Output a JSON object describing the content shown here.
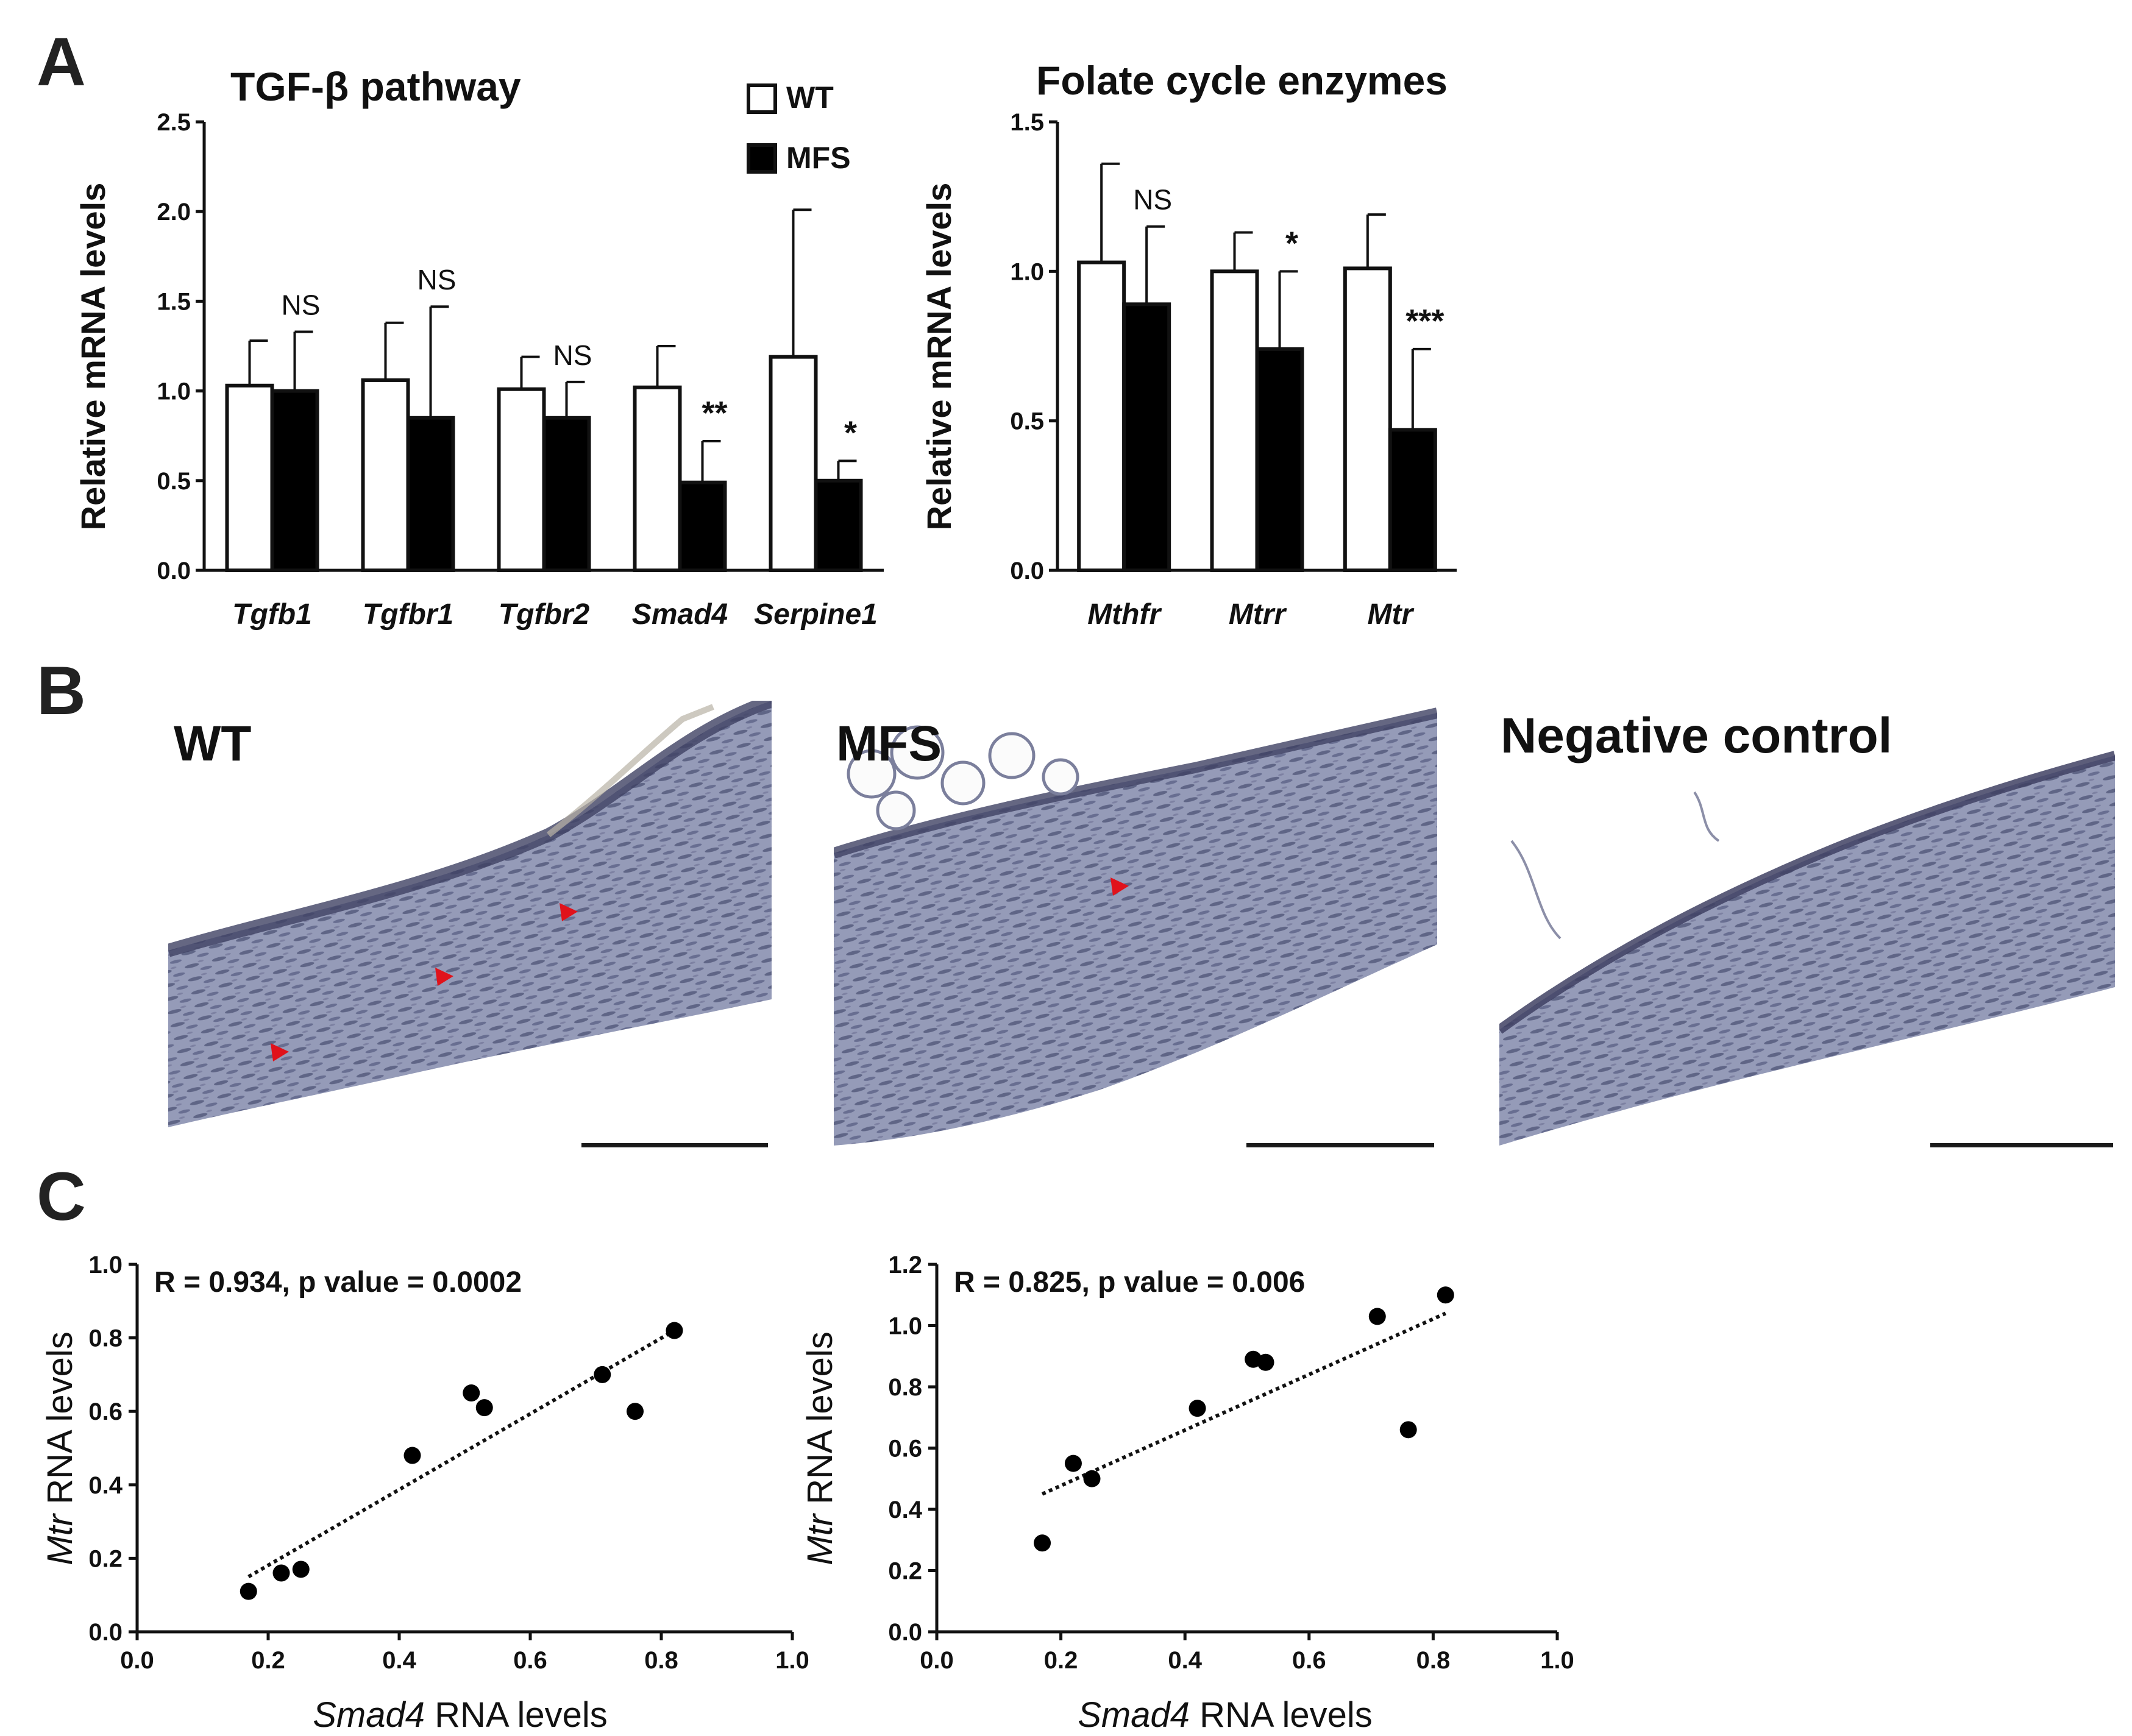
{
  "panel_labels": {
    "a": "A",
    "b": "B",
    "c": "C"
  },
  "legend": {
    "wt": "WT",
    "mfs": "MFS"
  },
  "colors": {
    "wt_fill": "#ffffff",
    "mfs_fill": "#000000",
    "arrow": "#e0121b",
    "tissue": "#8e94b3",
    "scalebar": "#1a1a1a"
  },
  "chart_data": [
    {
      "id": "tgf",
      "type": "bar",
      "title": "TGF-β pathway",
      "ylabel": "Relative mRNA levels",
      "xlabel": "",
      "ylim": [
        0,
        2.5
      ],
      "yticks": [
        "0.0",
        "0.5",
        "1.0",
        "1.5",
        "2.0",
        "2.5"
      ],
      "categories": [
        "Tgfb1",
        "Tgfbr1",
        "Tgfbr2",
        "Smad4",
        "Serpine1"
      ],
      "series": [
        {
          "name": "WT",
          "values": [
            1.03,
            1.06,
            1.01,
            1.02,
            1.19
          ],
          "errors": [
            0.25,
            0.32,
            0.18,
            0.23,
            0.82
          ]
        },
        {
          "name": "MFS",
          "values": [
            1.0,
            0.85,
            0.85,
            0.49,
            0.5
          ],
          "errors": [
            0.33,
            0.62,
            0.2,
            0.23,
            0.11
          ]
        }
      ],
      "significance": [
        "NS",
        "NS",
        "NS",
        "**",
        "*"
      ]
    },
    {
      "id": "folate",
      "type": "bar",
      "title": "Folate cycle enzymes",
      "ylabel": "Relative mRNA levels",
      "xlabel": "",
      "ylim": [
        0,
        1.5
      ],
      "yticks": [
        "0.0",
        "0.5",
        "1.0",
        "1.5"
      ],
      "categories": [
        "Mthfr",
        "Mtrr",
        "Mtr"
      ],
      "series": [
        {
          "name": "WT",
          "values": [
            1.03,
            1.0,
            1.01
          ],
          "errors": [
            0.33,
            0.13,
            0.18
          ]
        },
        {
          "name": "MFS",
          "values": [
            0.89,
            0.74,
            0.47
          ],
          "errors": [
            0.26,
            0.26,
            0.27
          ]
        }
      ],
      "significance": [
        "NS",
        "*",
        "***"
      ]
    },
    {
      "id": "scatter1",
      "type": "scatter",
      "annotation": "R = 0.934, p value = 0.0002",
      "xlabel": {
        "gene": "Smad4",
        "rest": " RNA levels"
      },
      "ylabel": {
        "gene": "Mtr",
        "rest": " RNA levels"
      },
      "xlim": [
        0,
        1.0
      ],
      "ylim": [
        0,
        1.0
      ],
      "xticks": [
        "0.0",
        "0.2",
        "0.4",
        "0.6",
        "0.8",
        "1.0"
      ],
      "yticks": [
        "0.0",
        "0.2",
        "0.4",
        "0.6",
        "0.8",
        "1.0"
      ],
      "points": [
        [
          0.17,
          0.11
        ],
        [
          0.22,
          0.16
        ],
        [
          0.25,
          0.17
        ],
        [
          0.42,
          0.48
        ],
        [
          0.51,
          0.65
        ],
        [
          0.53,
          0.61
        ],
        [
          0.71,
          0.7
        ],
        [
          0.76,
          0.6
        ],
        [
          0.82,
          0.82
        ]
      ],
      "fit": [
        [
          0.17,
          0.15
        ],
        [
          0.82,
          0.82
        ]
      ]
    },
    {
      "id": "scatter2",
      "type": "scatter",
      "annotation": "R = 0.825, p value = 0.006",
      "xlabel": {
        "gene": "Smad4",
        "rest": " RNA levels"
      },
      "ylabel": {
        "gene": "Mtr",
        "rest": " RNA levels"
      },
      "xlim": [
        0,
        1.0
      ],
      "ylim": [
        0,
        1.2
      ],
      "xticks": [
        "0.0",
        "0.2",
        "0.4",
        "0.6",
        "0.8",
        "1.0"
      ],
      "yticks": [
        "0.0",
        "0.2",
        "0.4",
        "0.6",
        "0.8",
        "1.0",
        "1.2"
      ],
      "points": [
        [
          0.17,
          0.29
        ],
        [
          0.22,
          0.55
        ],
        [
          0.25,
          0.5
        ],
        [
          0.42,
          0.73
        ],
        [
          0.51,
          0.89
        ],
        [
          0.53,
          0.88
        ],
        [
          0.71,
          1.03
        ],
        [
          0.76,
          0.66
        ],
        [
          0.82,
          1.1
        ]
      ],
      "fit": [
        [
          0.17,
          0.45
        ],
        [
          0.82,
          1.04
        ]
      ]
    }
  ],
  "micrographs": [
    {
      "id": "wt",
      "label": "WT"
    },
    {
      "id": "mfs",
      "label": "MFS"
    },
    {
      "id": "neg",
      "label": "Negative control"
    }
  ]
}
